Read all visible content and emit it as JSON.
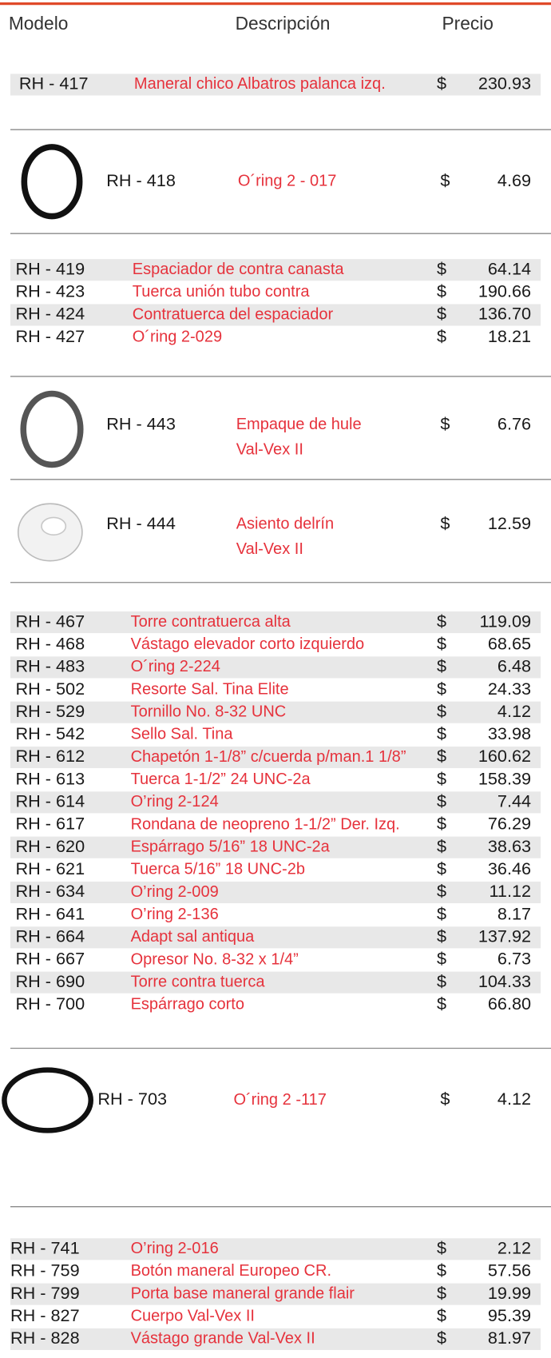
{
  "header": {
    "model": "Modelo",
    "description": "Descripción",
    "price": "Precio"
  },
  "sections": [
    {
      "rows": [
        {
          "model": "RH - 417",
          "description": "Maneral chico Albatros palanca izq.",
          "currency": "$",
          "price": "230.93"
        }
      ]
    },
    {
      "rows": [
        {
          "model": "RH - 418",
          "description": "O´ring  2 - 017",
          "currency": "$",
          "price": "4.69"
        }
      ]
    },
    {
      "rows": [
        {
          "model": "RH - 419",
          "description": "Espaciador de contra canasta",
          "currency": "$",
          "price": "64.14"
        },
        {
          "model": "RH - 423",
          "description": "Tuerca unión tubo contra",
          "currency": "$",
          "price": "190.66"
        },
        {
          "model": "RH - 424",
          "description": "Contratuerca del espaciador",
          "currency": "$",
          "price": "136.70"
        },
        {
          "model": "RH - 427",
          "description": "O´ring  2-029",
          "currency": "$",
          "price": "18.21"
        }
      ]
    },
    {
      "rows": [
        {
          "model": "RH - 443",
          "description": [
            "Empaque de hule",
            "Val-Vex II"
          ],
          "currency": "$",
          "price": "6.76"
        }
      ]
    },
    {
      "rows": [
        {
          "model": "RH - 444",
          "description": [
            "Asiento delrín",
            "Val-Vex II"
          ],
          "currency": "$",
          "price": "12.59"
        }
      ]
    },
    {
      "rows": [
        {
          "model": "RH - 467",
          "description": "Torre contratuerca alta",
          "currency": "$",
          "price": "119.09"
        },
        {
          "model": "RH - 468",
          "description": "Vástago elevador corto izquierdo",
          "currency": "$",
          "price": "68.65"
        },
        {
          "model": "RH - 483",
          "description": "O´ring  2-224",
          "currency": "$",
          "price": "6.48"
        },
        {
          "model": "RH - 502",
          "description": "Resorte Sal. Tina Elite",
          "currency": "$",
          "price": "24.33"
        },
        {
          "model": "RH - 529",
          "description": "Tornillo No. 8-32 UNC",
          "currency": "$",
          "price": "4.12"
        },
        {
          "model": "RH - 542",
          "description": "Sello Sal. Tina",
          "currency": "$",
          "price": "33.98"
        },
        {
          "model": "RH - 612",
          "description": "Chapetón 1-1/8” c/cuerda p/man.1 1/8”",
          "currency": "$",
          "price": "160.62"
        },
        {
          "model": "RH - 613",
          "description": "Tuerca 1-1/2”  24 UNC-2a",
          "currency": "$",
          "price": "158.39"
        },
        {
          "model": "RH - 614",
          "description": "O’ring 2-124",
          "currency": "$",
          "price": "7.44"
        },
        {
          "model": "RH - 617",
          "description": "Rondana de neopreno 1-1/2” Der. Izq.",
          "currency": "$",
          "price": "76.29"
        },
        {
          "model": "RH - 620",
          "description": "Espárrago 5/16” 18 UNC-2a",
          "currency": "$",
          "price": "38.63"
        },
        {
          "model": "RH - 621",
          "description": "Tuerca 5/16” 18 UNC-2b",
          "currency": "$",
          "price": "36.46"
        },
        {
          "model": "RH - 634",
          "description": "O’ring  2-009",
          "currency": "$",
          "price": "11.12"
        },
        {
          "model": "RH - 641",
          "description": "O’ring 2-136",
          "currency": "$",
          "price": "8.17"
        },
        {
          "model": "RH - 664",
          "description": "Adapt sal antiqua",
          "currency": "$",
          "price": "137.92"
        },
        {
          "model": "RH - 667",
          "description": "Opresor No. 8-32 x 1/4”",
          "currency": "$",
          "price": "6.73"
        },
        {
          "model": "RH - 690",
          "description": "Torre contra tuerca",
          "currency": "$",
          "price": "104.33"
        },
        {
          "model": "RH - 700",
          "description": "Espárrago corto",
          "currency": "$",
          "price": "66.80"
        }
      ]
    },
    {
      "rows": [
        {
          "model": "RH - 703",
          "description": "O´ring 2 -117",
          "currency": "$",
          "price": "4.12"
        }
      ]
    },
    {
      "rows": [
        {
          "model": "RH - 741",
          "description": "O’ring  2-016",
          "currency": "$",
          "price": "2.12"
        },
        {
          "model": "RH - 759",
          "description": "Botón maneral Europeo CR.",
          "currency": "$",
          "price": "57.56"
        },
        {
          "model": "RH - 799",
          "description": "Porta base maneral grande flair",
          "currency": "$",
          "price": "19.99"
        },
        {
          "model": "RH - 827",
          "description": "Cuerpo Val-Vex II",
          "currency": "$",
          "price": "95.39"
        },
        {
          "model": "RH - 828",
          "description": "Vástago grande Val-Vex II",
          "currency": "$",
          "price": "81.97"
        }
      ]
    }
  ]
}
